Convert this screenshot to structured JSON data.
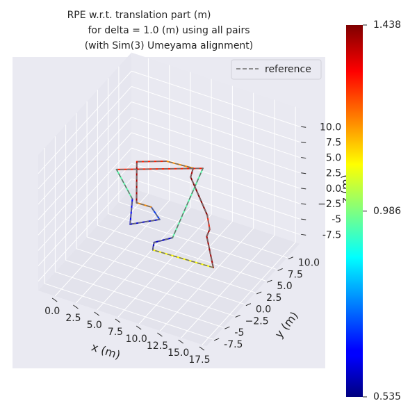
{
  "chart_data": {
    "type": "line3d",
    "title": [
      "RPE w.r.t. translation part (m)",
      "for delta = 1.0 (m) using all pairs",
      "(with Sim(3) Umeyama alignment)"
    ],
    "xlabel": "x (m)",
    "ylabel": "y (m)",
    "zlabel": "z (m)",
    "xlim": [
      -2,
      18
    ],
    "ylim": [
      -9,
      13
    ],
    "zlim": [
      -9,
      13
    ],
    "xticks": [
      {
        "value": 0,
        "label": "0.0"
      },
      2.5,
      {
        "value": 5,
        "label": "5.0"
      },
      7.5,
      {
        "value": 10,
        "label": "10.0"
      },
      12.5,
      {
        "value": 15,
        "label": "15.0"
      },
      17.5
    ],
    "yticks": [
      -7.5,
      -5,
      {
        "value": -2.5,
        "label": "−2.5"
      },
      {
        "value": 0,
        "label": "0.0"
      },
      2.5,
      {
        "value": 5,
        "label": "5.0"
      },
      7.5,
      {
        "value": 10,
        "label": "10.0"
      }
    ],
    "zticks": [
      -7.5,
      -5,
      {
        "value": -2.5,
        "label": "−2.5"
      },
      {
        "value": 0,
        "label": "0.0"
      },
      2.5,
      {
        "value": 5,
        "label": "5.0"
      },
      7.5,
      {
        "value": 10,
        "label": "10.0"
      }
    ],
    "series": [
      {
        "name": "reference",
        "color": "#6e6e6e",
        "x": [
          16.7,
          9.7,
          9.2,
          10.5,
          7.5,
          -0.3,
          3.6,
          5.5,
          7.8,
          6.0,
          4.3,
          0.9,
          3.6,
          6.6,
          7.1,
          11.8,
          13.2,
          13.5
        ],
        "y": [
          -4.8,
          -5.2,
          -3.9,
          -2.1,
          11.0,
          6.1,
          2.1,
          -2.2,
          0.2,
          1.8,
          1.7,
          8.5,
          10.2,
          10.5,
          8.9,
          3.5,
          1.3,
          0.0
        ],
        "z": [
          0,
          0,
          0,
          0,
          0,
          0,
          0,
          0,
          0,
          0,
          0,
          0,
          0,
          0,
          0,
          0,
          0,
          0
        ]
      }
    ],
    "values": [
      1.1,
      0.6,
      0.6,
      0.95,
      1.3,
      0.95,
      0.65,
      0.6,
      0.7,
      1.2,
      1.4,
      1.3,
      1.2,
      1.4,
      1.43,
      1.3,
      1.4,
      1.4
    ],
    "clim": [
      0.535,
      1.438
    ],
    "cticks": [
      0.535,
      0.986,
      1.438
    ],
    "colormap": "jet",
    "legend": "upper right",
    "grid": true
  }
}
